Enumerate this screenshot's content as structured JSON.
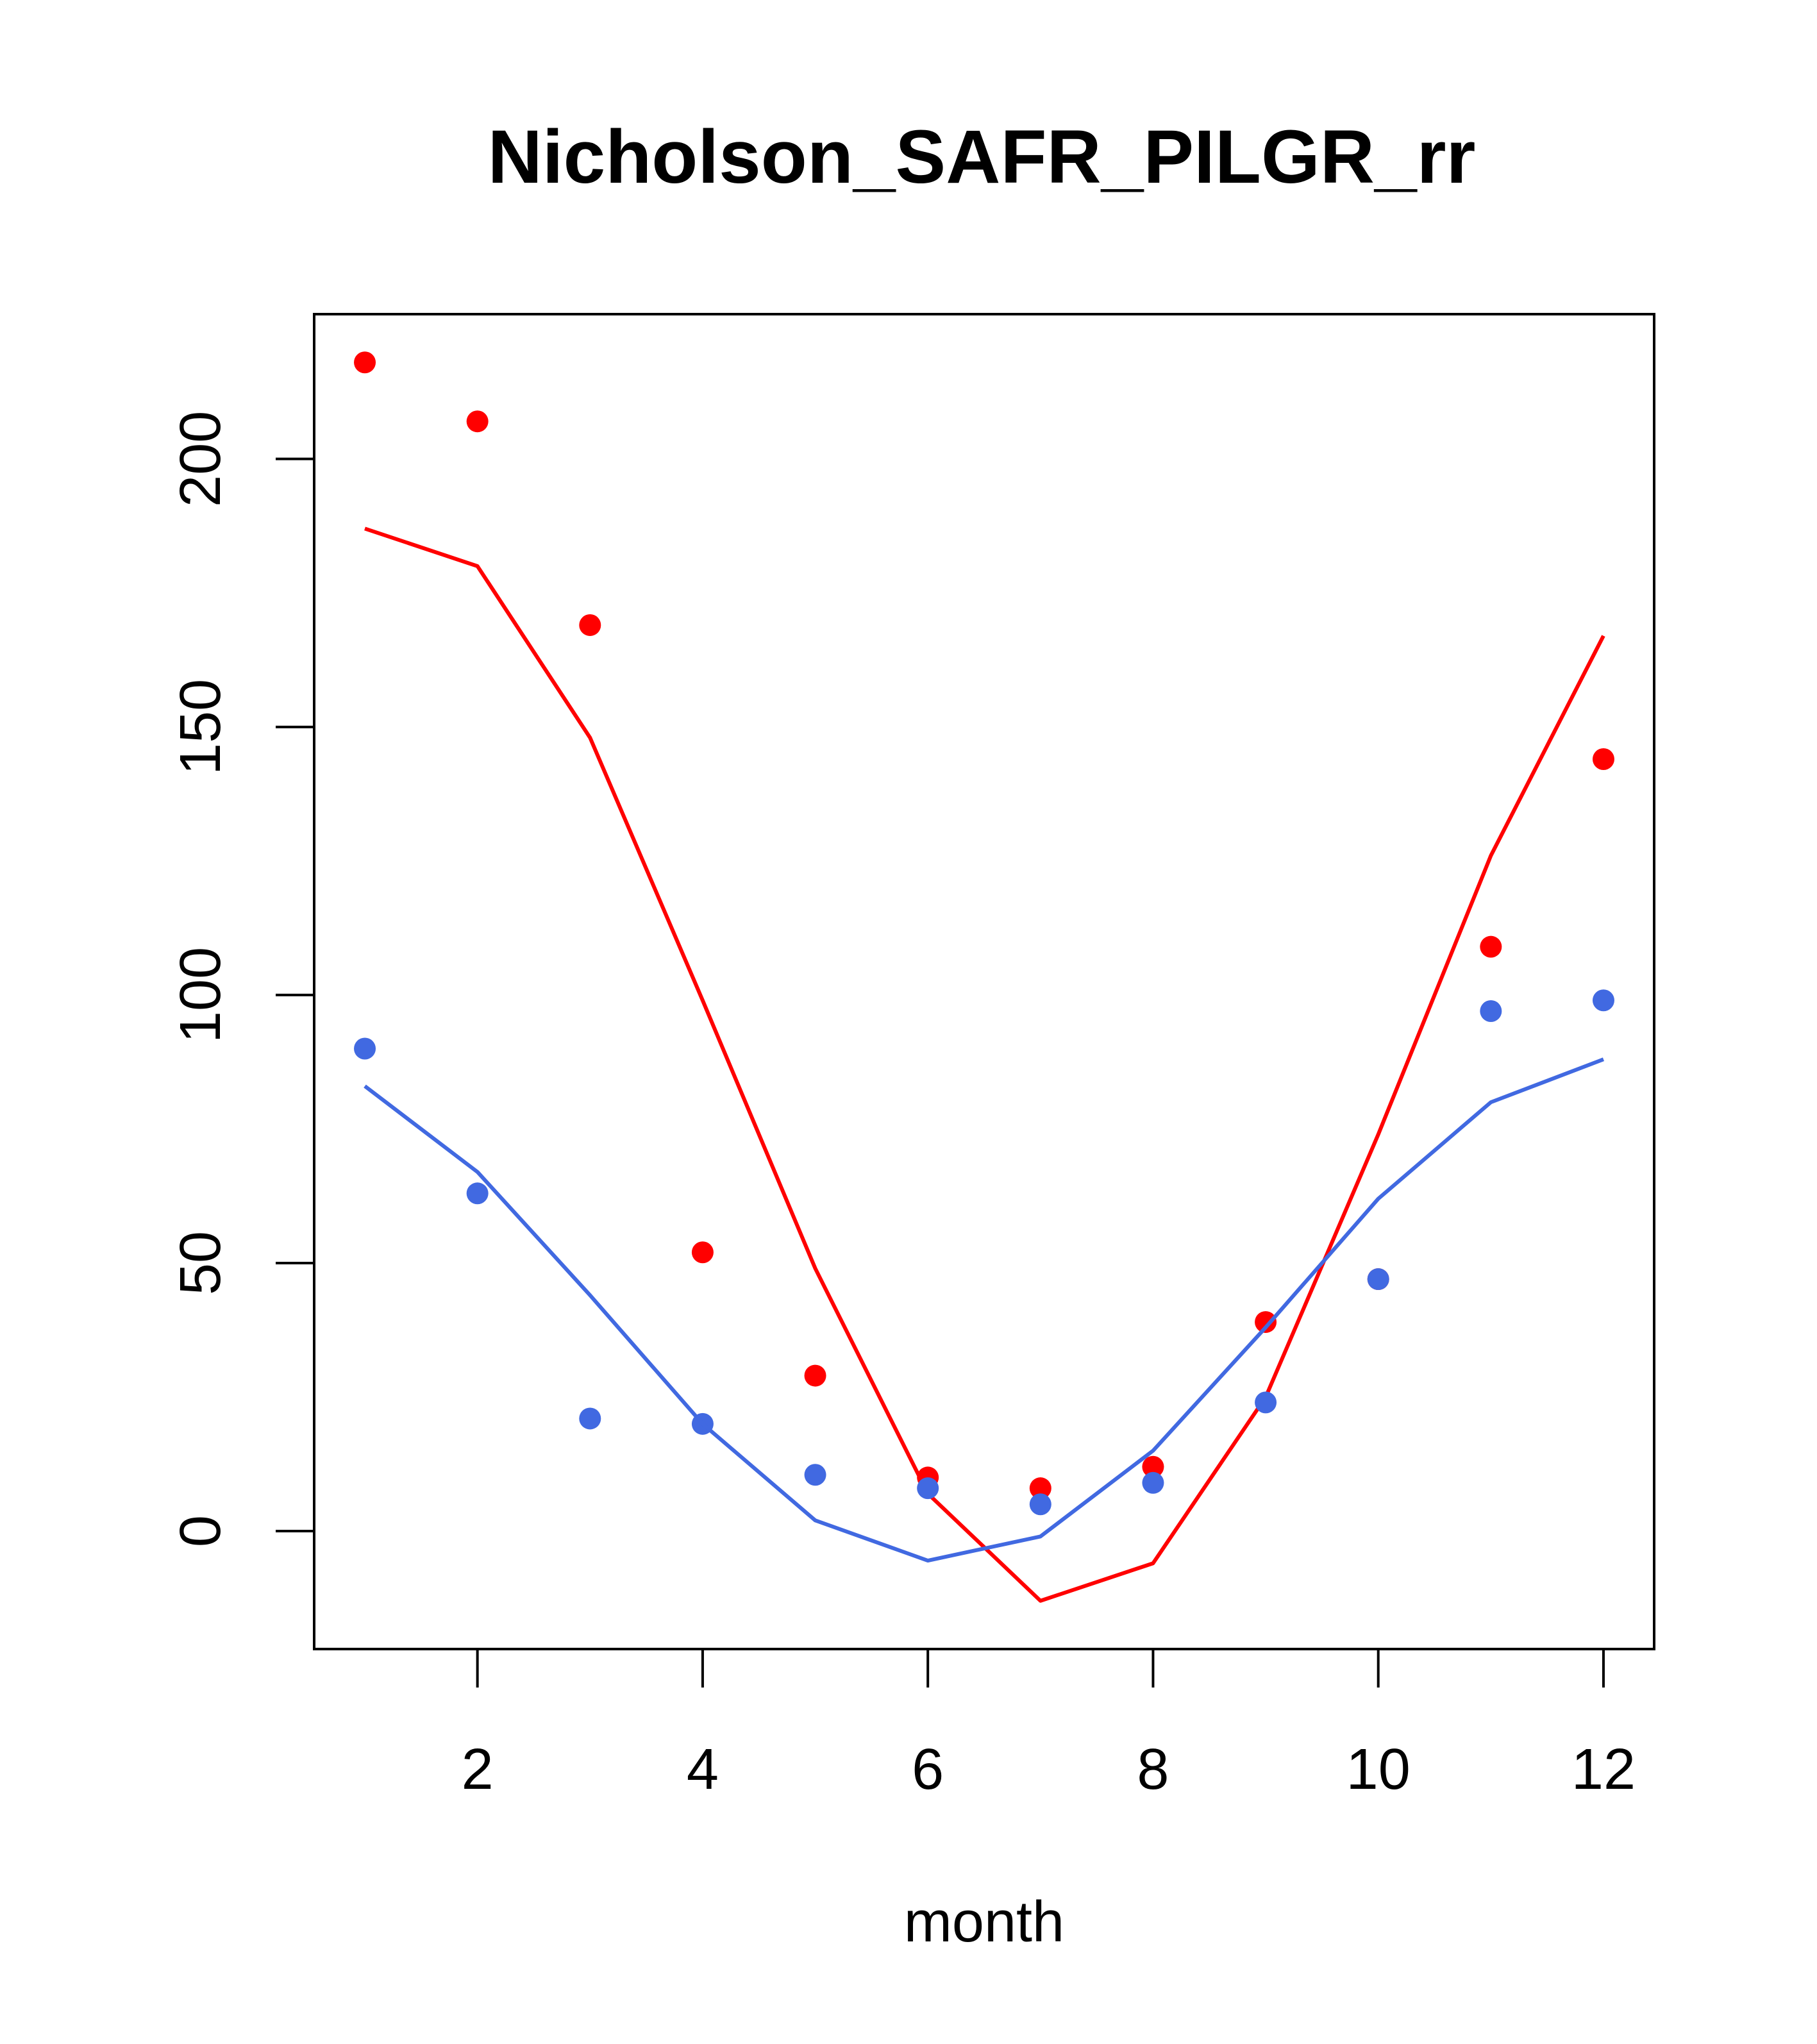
{
  "chart_data": {
    "type": "line",
    "title": "Nicholson_SAFR_PILGR_rr",
    "xlabel": "month",
    "ylabel": "",
    "xlim": [
      0.55,
      12.45
    ],
    "ylim": [
      -22,
      227
    ],
    "x_ticks": [
      2,
      4,
      6,
      8,
      10,
      12
    ],
    "y_ticks": [
      0,
      50,
      100,
      150,
      200
    ],
    "x": [
      1,
      2,
      3,
      4,
      5,
      6,
      7,
      8,
      9,
      10,
      11,
      12
    ],
    "series": [
      {
        "name": "red observed",
        "style": "points",
        "color": "#ff0000",
        "values": [
          218,
          207,
          169,
          52,
          29,
          10,
          8,
          12,
          39,
          47,
          109,
          144
        ]
      },
      {
        "name": "red fitted",
        "style": "line",
        "color": "#ff0000",
        "values": [
          187,
          180,
          148,
          99,
          49,
          7,
          -13,
          -6,
          25,
          74,
          126,
          167
        ]
      },
      {
        "name": "blue observed",
        "style": "points",
        "color": "#4169e1",
        "values": [
          90,
          63,
          21,
          20,
          10.5,
          8,
          5,
          9,
          24,
          47,
          97,
          99
        ]
      },
      {
        "name": "blue fitted",
        "style": "line",
        "color": "#4169e1",
        "values": [
          83,
          67,
          44,
          20,
          2,
          -5.5,
          -1,
          15,
          38,
          62,
          80,
          88
        ]
      }
    ]
  }
}
